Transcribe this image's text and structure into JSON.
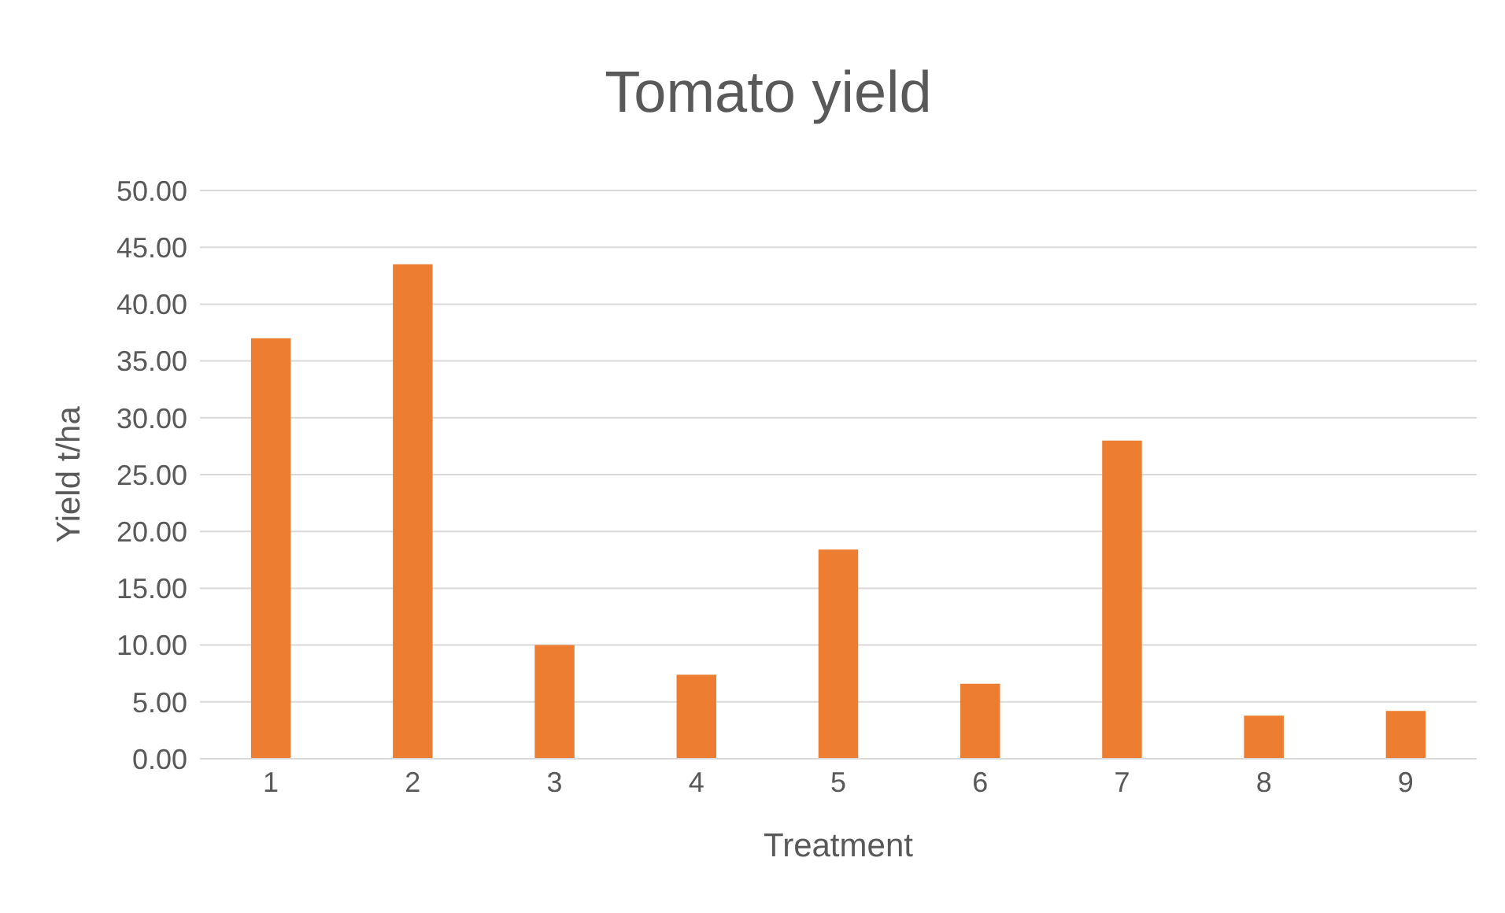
{
  "chart_data": {
    "type": "bar",
    "title": "Tomato yield",
    "xlabel": "Treatment",
    "ylabel": "Yield t/ha",
    "categories": [
      "1",
      "2",
      "3",
      "4",
      "5",
      "6",
      "7",
      "8",
      "9"
    ],
    "values": [
      37.0,
      43.5,
      10.0,
      7.4,
      18.4,
      6.6,
      28.0,
      3.8,
      4.2
    ],
    "color": "#ed7d31",
    "ylim": [
      0,
      50
    ],
    "yticks": [
      {
        "value": 0,
        "label": "0.00"
      },
      {
        "value": 5,
        "label": "5.00"
      },
      {
        "value": 10,
        "label": "10.00"
      },
      {
        "value": 15,
        "label": "15.00"
      },
      {
        "value": 20,
        "label": "20.00"
      },
      {
        "value": 25,
        "label": "25.00"
      },
      {
        "value": 30,
        "label": "30.00"
      },
      {
        "value": 35,
        "label": "35.00"
      },
      {
        "value": 40,
        "label": "40.00"
      },
      {
        "value": 45,
        "label": "45.00"
      },
      {
        "value": 50,
        "label": "50.00"
      }
    ],
    "grid": "y",
    "legend": false
  }
}
